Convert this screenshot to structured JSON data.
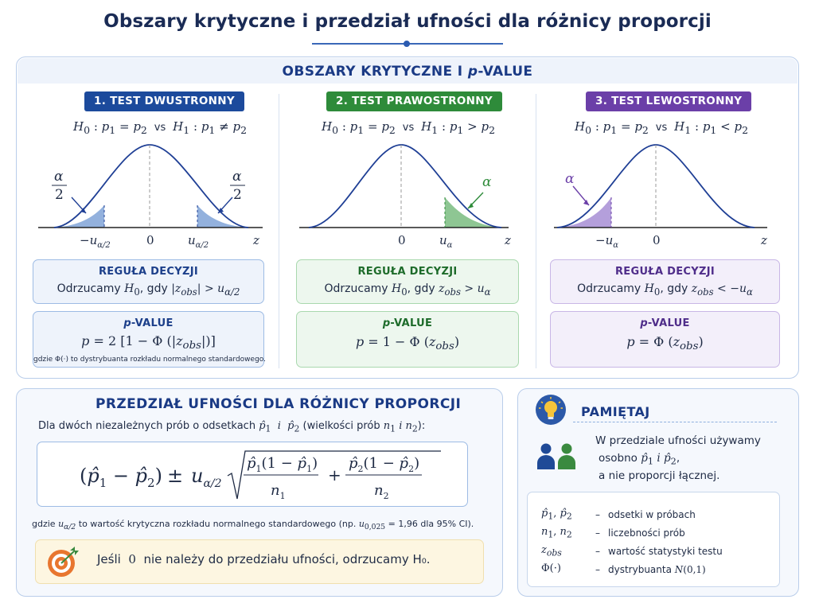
{
  "title": "Obszary krytyczne i przedział ufności dla różnicy proporcji",
  "critical": {
    "section_title": "OBSZARY KRYTYCZNE I p-VALUE",
    "tests": [
      {
        "badge": "1. TEST DWUSTRONNY",
        "color": "#1c4a9c",
        "hypothesis": "H₀ : p₁ = p₂  vs  H₁ : p₁ ≠ p₂",
        "left_label": "−u_{α/2}",
        "center_label": "0",
        "right_label": "u_{α/2}",
        "axis_label": "z",
        "alpha_label": "α/2",
        "rule_title": "REGUŁA DECYZJI",
        "rule_text": "Odrzucamy H₀, gdy |z_obs| > u_{α/2}",
        "pv_title": "p-VALUE",
        "pv_formula": "p = 2 [1 − Φ(|z_obs|)]",
        "pv_note": "gdzie Φ(·) to dystrybuanta rozkładu normalnego standardowego."
      },
      {
        "badge": "2. TEST PRAWOSTRONNY",
        "color": "#2e8b3a",
        "hypothesis": "H₀ : p₁ = p₂  vs  H₁ : p₁ > p₂",
        "center_label": "0",
        "right_label": "u_α",
        "axis_label": "z",
        "alpha_label": "α",
        "rule_title": "REGUŁA DECYZJI",
        "rule_text": "Odrzucamy H₀, gdy z_obs > u_α",
        "pv_title": "p-VALUE",
        "pv_formula": "p = 1 − Φ(z_obs)"
      },
      {
        "badge": "3. TEST LEWOSTRONNY",
        "color": "#6b3fa8",
        "hypothesis": "H₀ : p₁ = p₂  vs  H₁ : p₁ < p₂",
        "left_label": "−u_α",
        "center_label": "0",
        "axis_label": "z",
        "alpha_label": "α",
        "rule_title": "REGUŁA DECYZJI",
        "rule_text": "Odrzucamy H₀, gdy z_obs < −u_α",
        "pv_title": "p-VALUE",
        "pv_formula": "p = Φ(z_obs)"
      }
    ]
  },
  "ci": {
    "title": "PRZEDZIAŁ UFNOŚCI DLA RÓŻNICY PROPORCJI",
    "intro_a": "Dla dwóch niezależnych prób o odsetkach",
    "intro_b": "(wielkości prób",
    "formula_pm": "±",
    "note_a": "gdzie",
    "note_b": "to wartość krytyczna rozkładu normalnego standardowego (np.",
    "note_c": "= 1,96 dla 95% CI).",
    "conclusion_a": "Jeśli",
    "conclusion_zero": "0",
    "conclusion_b": "nie należy do przedziału ufności, odrzucamy H₀."
  },
  "remember": {
    "title": "PAMIĘTAJ",
    "line1": "W przedziale ufności używamy",
    "line2a": "osobno",
    "line2b": "i",
    "line3": "a nie proporcji łącznej.",
    "legend": [
      {
        "symbol": "p̂₁, p̂₂",
        "desc": "odsetki w próbach"
      },
      {
        "symbol": "n₁, n₂",
        "desc": "liczebności prób"
      },
      {
        "symbol": "z_obs",
        "desc": "wartość statystyki testu"
      },
      {
        "symbol": "Φ(·)",
        "desc": "dystrybuanta N(0,1)"
      }
    ]
  }
}
